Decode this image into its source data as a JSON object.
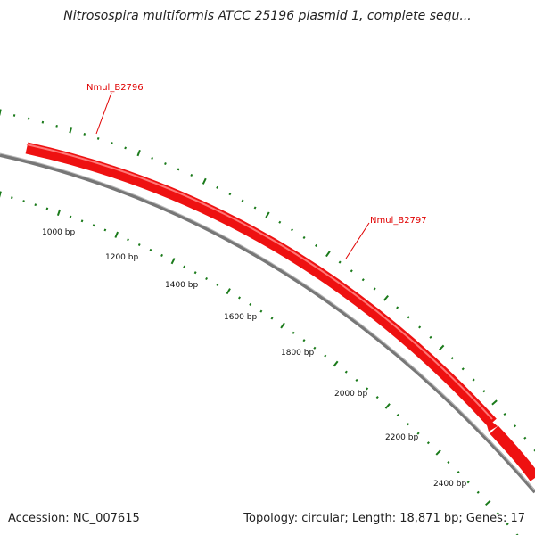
{
  "title": "Nitrosospira multiformis ATCC 25196 plasmid 1, complete sequ...",
  "footer": {
    "accession": "Accession: NC_007615",
    "summary": "Topology: circular; Length: 18,871 bp; Genes: 17"
  },
  "genes": [
    {
      "name": "Nmul_B2796"
    },
    {
      "name": "Nmul_B2797"
    }
  ],
  "ticks": [
    "1000 bp",
    "1200 bp",
    "1400 bp",
    "1600 bp",
    "1800 bp",
    "2000 bp",
    "2200 bp",
    "2400 bp"
  ],
  "colors": {
    "gene": "#ee1111",
    "backbone": "#777777",
    "ticks": "#1a7a1a",
    "label": "#e00000"
  }
}
